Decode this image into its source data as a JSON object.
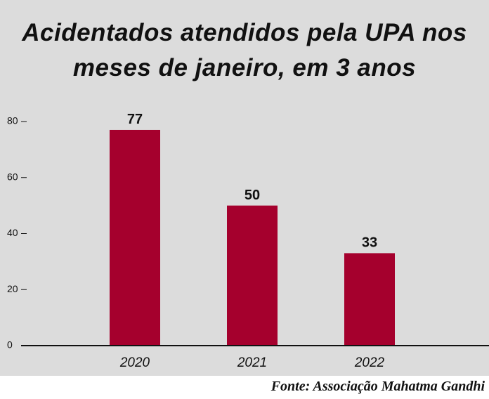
{
  "chart_data": {
    "type": "bar",
    "title": "Acidentados atendidos pela UPA nos meses de janeiro, em 3 anos",
    "categories": [
      "2020",
      "2021",
      "2022"
    ],
    "values": [
      77,
      50,
      33
    ],
    "color": "#a5002d",
    "ylim": [
      0,
      80
    ],
    "yticks": [
      0,
      20,
      40,
      60,
      80
    ],
    "grid": false,
    "source": "Fonte: Associação Mahatma Gandhi"
  }
}
